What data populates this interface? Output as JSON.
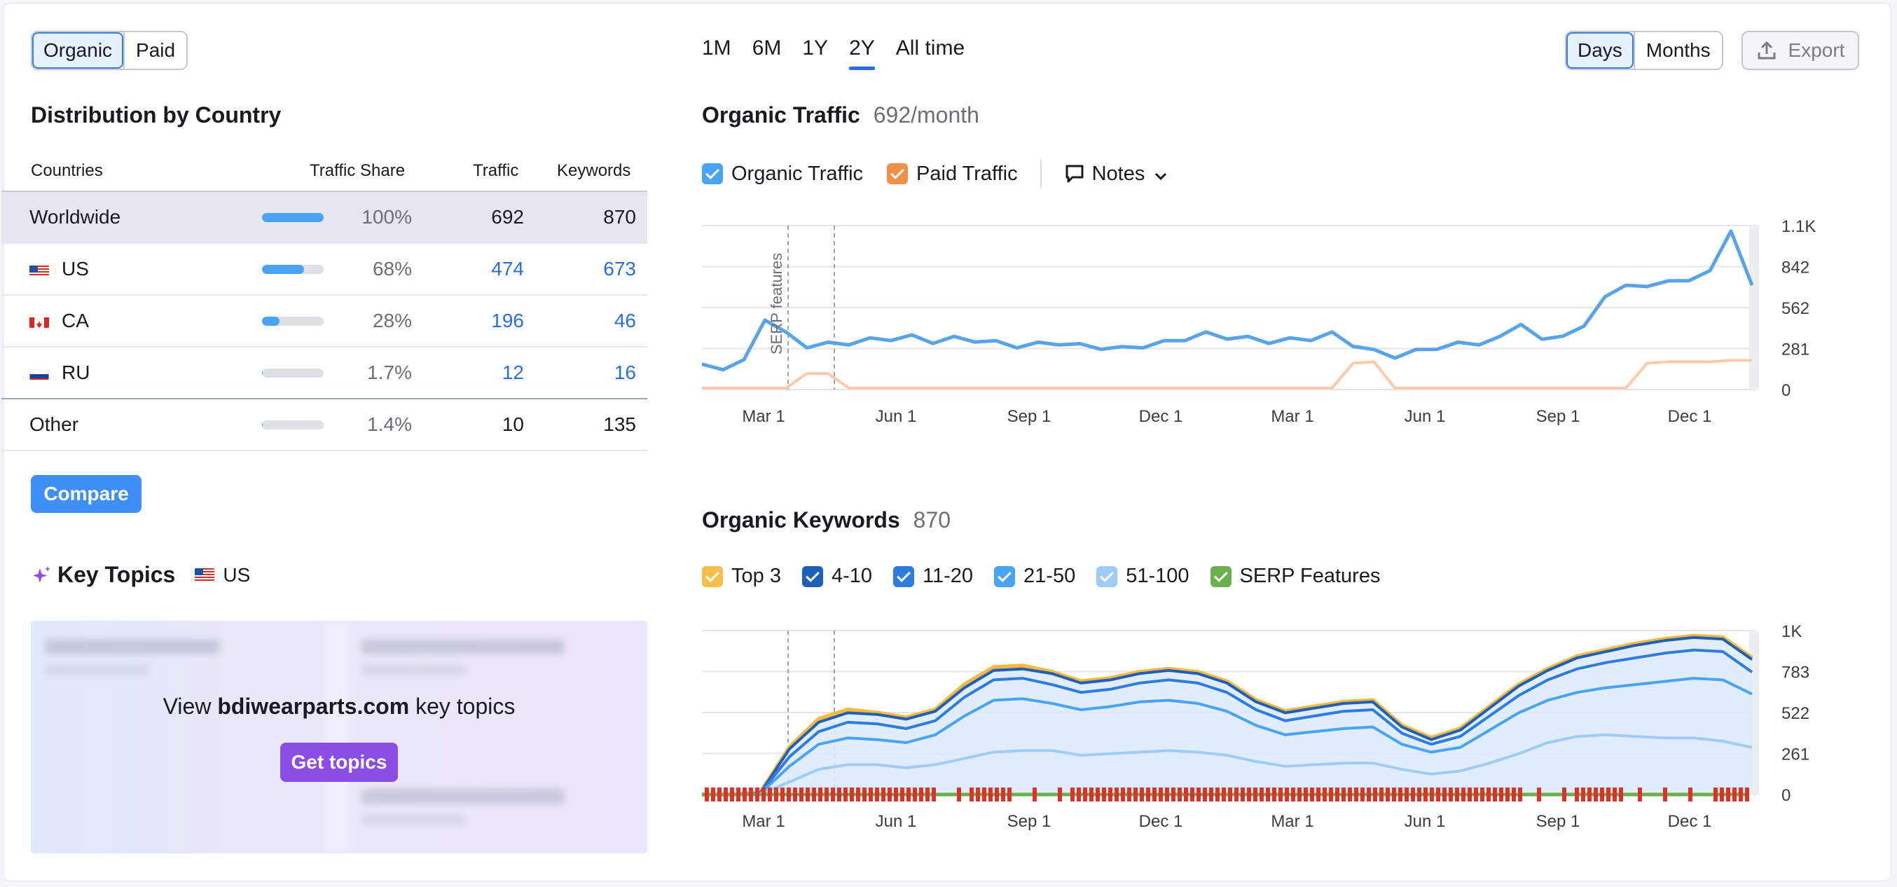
{
  "type_toggle": {
    "organic": "Organic",
    "paid": "Paid"
  },
  "distribution": {
    "title": "Distribution by Country",
    "headers": {
      "countries": "Countries",
      "share": "Traffic Share",
      "traffic": "Traffic",
      "keywords": "Keywords"
    },
    "rows": [
      {
        "name": "Worldwide",
        "share": "100%",
        "share_value": 100,
        "traffic": "692",
        "keywords": "870"
      },
      {
        "name": "US",
        "share": "68%",
        "share_value": 68,
        "traffic": "474",
        "keywords": "673"
      },
      {
        "name": "CA",
        "share": "28%",
        "share_value": 28,
        "traffic": "196",
        "keywords": "46"
      },
      {
        "name": "RU",
        "share": "1.7%",
        "share_value": 1.7,
        "traffic": "12",
        "keywords": "16"
      },
      {
        "name": "Other",
        "share": "1.4%",
        "share_value": 1.4,
        "traffic": "10",
        "keywords": "135"
      }
    ],
    "compare_label": "Compare"
  },
  "key_topics": {
    "title": "Key Topics",
    "country": "US",
    "cta_prefix": "View ",
    "cta_domain": "bdiwearparts.com",
    "cta_suffix": " key topics",
    "button": "Get topics"
  },
  "periods": [
    "1M",
    "6M",
    "1Y",
    "2Y",
    "All time"
  ],
  "active_period": "2Y",
  "granularity": {
    "days": "Days",
    "months": "Months"
  },
  "export_label": "Export",
  "organic_traffic": {
    "title": "Organic Traffic",
    "value": "692/month",
    "legend": {
      "organic": "Organic Traffic",
      "paid": "Paid Traffic",
      "notes": "Notes"
    },
    "annotation": "SERP features"
  },
  "organic_keywords": {
    "title": "Organic Keywords",
    "value": "870",
    "legend": [
      "Top 3",
      "4-10",
      "11-20",
      "21-50",
      "51-100",
      "SERP Features"
    ]
  },
  "colors": {
    "organic": "#5aa3e6",
    "paid": "#fbc9ab",
    "top3": "#f5b93f",
    "k4_10": "#1f5fb8",
    "k11_20": "#2f7be0",
    "k21_50": "#4aa3f5",
    "k51_100": "#9fcbf7",
    "serp": "#6ab04c",
    "accent": "#3e8ff7",
    "purple": "#8a4ee3"
  },
  "chart_data": [
    {
      "type": "line",
      "x_ticks": [
        "Mar 1",
        "Jun 1",
        "Sep 1",
        "Dec 1",
        "Mar 1",
        "Jun 1",
        "Sep 1",
        "Dec 1"
      ],
      "y_ticks": [
        "0",
        "281",
        "562",
        "842",
        "1.1K"
      ],
      "ylim": [
        0,
        1123
      ],
      "series": [
        {
          "name": "Organic Traffic",
          "values": [
            160,
            150,
            190,
            490,
            380,
            300,
            310,
            320,
            340,
            350,
            360,
            330,
            350,
            340,
            320,
            300,
            310,
            320,
            300,
            290,
            280,
            300,
            320,
            350,
            380,
            360,
            350,
            330,
            340,
            350,
            380,
            310,
            260,
            230,
            260,
            290,
            310,
            320,
            350,
            460,
            330,
            380,
            420,
            650,
            700,
            720,
            730,
            760,
            800,
            1100,
            700
          ]
        },
        {
          "name": "Paid Traffic",
          "values": [
            10,
            10,
            10,
            10,
            10,
            110,
            110,
            10,
            10,
            10,
            10,
            10,
            10,
            10,
            10,
            10,
            10,
            10,
            10,
            10,
            10,
            10,
            10,
            10,
            10,
            10,
            10,
            10,
            10,
            10,
            10,
            180,
            190,
            10,
            10,
            10,
            10,
            10,
            10,
            10,
            10,
            10,
            10,
            10,
            10,
            180,
            190,
            190,
            190,
            200,
            200
          ]
        }
      ]
    },
    {
      "type": "area",
      "x_ticks": [
        "Mar 1",
        "Jun 1",
        "Sep 1",
        "Dec 1",
        "Mar 1",
        "Jun 1",
        "Sep 1",
        "Dec 1"
      ],
      "y_ticks": [
        "0",
        "261",
        "522",
        "783",
        "1K"
      ],
      "ylim": [
        0,
        1044
      ],
      "series": [
        {
          "name": "Top 3",
          "values": [
            0,
            0,
            10,
            300,
            480,
            540,
            520,
            490,
            540,
            700,
            810,
            820,
            780,
            720,
            740,
            780,
            800,
            780,
            720,
            600,
            530,
            560,
            590,
            600,
            440,
            360,
            420,
            560,
            700,
            800,
            880,
            920,
            960,
            990,
            1010,
            1000,
            870
          ]
        },
        {
          "name": "4-10",
          "values": [
            0,
            0,
            10,
            290,
            460,
            520,
            510,
            480,
            530,
            680,
            790,
            800,
            770,
            710,
            730,
            770,
            790,
            770,
            710,
            590,
            520,
            550,
            580,
            590,
            430,
            350,
            410,
            550,
            690,
            790,
            870,
            910,
            950,
            980,
            1000,
            990,
            860
          ]
        },
        {
          "name": "11-20",
          "values": [
            0,
            0,
            8,
            240,
            400,
            460,
            450,
            420,
            470,
            620,
            730,
            740,
            700,
            650,
            670,
            710,
            730,
            710,
            650,
            540,
            470,
            500,
            530,
            540,
            390,
            320,
            370,
            500,
            630,
            730,
            800,
            840,
            870,
            900,
            920,
            910,
            780
          ]
        },
        {
          "name": "21-50",
          "values": [
            0,
            0,
            6,
            180,
            320,
            360,
            350,
            330,
            380,
            500,
            600,
            610,
            580,
            540,
            560,
            590,
            600,
            580,
            530,
            440,
            380,
            400,
            420,
            430,
            320,
            270,
            300,
            410,
            520,
            600,
            650,
            680,
            700,
            720,
            740,
            730,
            640
          ]
        },
        {
          "name": "51-100",
          "values": [
            0,
            0,
            4,
            80,
            160,
            190,
            190,
            170,
            190,
            230,
            270,
            280,
            280,
            250,
            260,
            270,
            280,
            270,
            250,
            210,
            180,
            190,
            200,
            200,
            160,
            130,
            150,
            200,
            260,
            330,
            370,
            380,
            370,
            360,
            360,
            340,
            300
          ]
        }
      ]
    }
  ]
}
